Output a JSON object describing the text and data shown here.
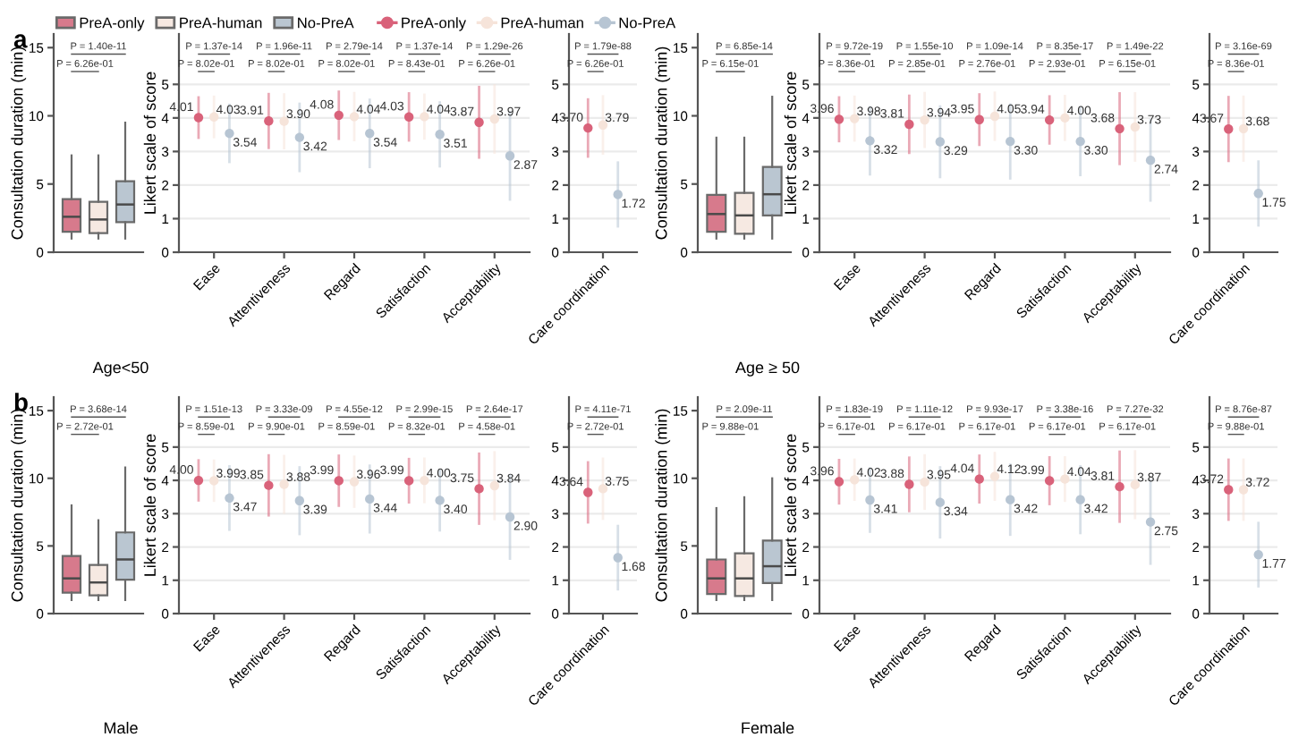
{
  "chart_data": [
    {
      "type": "box",
      "title": "a",
      "xlabel": "Age<50",
      "ylabel": "Consultation duration (min)",
      "categories": [
        null
      ],
      "ylim": [
        0,
        16
      ],
      "yticks": [
        0,
        5,
        10,
        15
      ],
      "legend": "top",
      "annotations": [
        "P = 1.40e-11",
        "P = 6.26e-01"
      ],
      "series": [
        {
          "name": "PreA-only",
          "color": "#d77a8c",
          "boxes": [
            {
              "low": 1,
              "q1": 1.5,
              "median": 2.6,
              "q3": 3.9,
              "high": 7.1
            }
          ]
        },
        {
          "name": "PreA-human",
          "color": "#f6e9e2",
          "boxes": [
            {
              "low": 1,
              "q1": 1.4,
              "median": 2.4,
              "q3": 3.7,
              "high": 7.1
            }
          ]
        },
        {
          "name": "No-PreA",
          "color": "#bac6d1",
          "boxes": [
            {
              "low": 1,
              "q1": 2.2,
              "median": 3.5,
              "q3": 5.2,
              "high": 9.5
            }
          ]
        }
      ]
    },
    {
      "type": "scatter",
      "ylabel": "Likert scale of score",
      "categories": [
        "Ease",
        "Attentiveness",
        "Regard",
        "Satisfaction",
        "Acceptability"
      ],
      "ylim": [
        0,
        6.5
      ],
      "yticks": [
        0,
        1,
        2,
        3,
        4,
        5
      ],
      "grid": "y",
      "marker": "circle",
      "legend": "top",
      "annotations": [
        "P = 1.37e-14",
        "P = 8.02e-01",
        "P = 1.96e-11",
        "P = 8.02e-01",
        "P = 2.79e-14",
        "P = 8.02e-01",
        "P = 1.37e-14",
        "P = 8.43e-01",
        "P = 1.29e-26",
        "P = 6.26e-01"
      ],
      "series": [
        {
          "name": "PreA-only",
          "color": "#d9627a",
          "values": [
            4.01,
            3.91,
            4.08,
            4.03,
            3.87
          ],
          "errors": [
            0.6,
            0.8,
            0.7,
            0.7,
            1.05
          ],
          "value_labels": [
            "4.01",
            "3.91",
            "4.08",
            "4.03",
            "3.87"
          ]
        },
        {
          "name": "PreA-human",
          "color": "#f6e4da",
          "values": [
            4.03,
            3.9,
            4.04,
            4.04,
            3.97
          ],
          "errors": [
            0.6,
            0.8,
            0.7,
            0.65,
            1.0
          ],
          "value_labels": [
            "4.03",
            "3.90",
            "4.04",
            "4.04",
            "3.97"
          ]
        },
        {
          "name": "No-PreA",
          "color": "#b7c5d3",
          "values": [
            3.54,
            3.42,
            3.54,
            3.51,
            2.87
          ],
          "errors": [
            0.85,
            1.0,
            1.0,
            0.95,
            1.3
          ],
          "value_labels": [
            "3.54",
            "3.42",
            "3.54",
            "3.51",
            "2.87"
          ]
        }
      ]
    },
    {
      "type": "scatter",
      "categories": [
        "Care coordination"
      ],
      "ylim": [
        0,
        6.5
      ],
      "yticks": [
        0,
        1,
        2,
        3,
        4,
        5
      ],
      "grid": "y",
      "marker": "circle",
      "annotations": [
        "P = 1.79e-88",
        "P = 6.26e-01"
      ],
      "series": [
        {
          "color": "#d9627a",
          "values": [
            3.7
          ],
          "errors": [
            0.85
          ],
          "value_labels": [
            "3.70"
          ]
        },
        {
          "color": "#f6e4da",
          "values": [
            3.79
          ],
          "errors": [
            0.85
          ],
          "value_labels": [
            "3.79"
          ]
        },
        {
          "color": "#b7c5d3",
          "values": [
            1.72
          ],
          "errors": [
            0.95
          ],
          "value_labels": [
            "1.72"
          ]
        }
      ]
    },
    {
      "type": "box",
      "xlabel": "Age ≥ 50",
      "ylabel": "Consultation duration (min)",
      "categories": [
        null
      ],
      "ylim": [
        0,
        16
      ],
      "yticks": [
        0,
        5,
        10,
        15
      ],
      "annotations": [
        "P = 6.85e-14",
        "P = 6.15e-01"
      ],
      "series": [
        {
          "color": "#d77a8c",
          "boxes": [
            {
              "low": 1,
              "q1": 1.5,
              "median": 2.8,
              "q3": 4.2,
              "high": 8.4
            }
          ]
        },
        {
          "color": "#f6e9e2",
          "boxes": [
            {
              "low": 1,
              "q1": 1.35,
              "median": 2.7,
              "q3": 4.35,
              "high": 8.4
            }
          ]
        },
        {
          "color": "#bac6d1",
          "boxes": [
            {
              "low": 1,
              "q1": 2.7,
              "median": 4.25,
              "q3": 6.25,
              "high": 11.4
            }
          ]
        }
      ]
    },
    {
      "type": "scatter",
      "ylabel": "Likert scale of score",
      "categories": [
        "Ease",
        "Attentiveness",
        "Regard",
        "Satisfaction",
        "Acceptability"
      ],
      "ylim": [
        0,
        6.5
      ],
      "yticks": [
        0,
        1,
        2,
        3,
        4,
        5
      ],
      "grid": "y",
      "marker": "circle",
      "annotations": [
        "P = 9.72e-19",
        "P = 8.36e-01",
        "P = 1.55e-10",
        "P = 2.85e-01",
        "P = 1.09e-14",
        "P = 2.76e-01",
        "P = 8.35e-17",
        "P = 2.93e-01",
        "P = 1.49e-22",
        "P = 6.15e-01"
      ],
      "series": [
        {
          "color": "#d9627a",
          "values": [
            3.96,
            3.81,
            3.95,
            3.94,
            3.68
          ],
          "errors": [
            0.65,
            0.85,
            0.75,
            0.7,
            1.05
          ],
          "value_labels": [
            "3.96",
            "3.81",
            "3.95",
            "3.94",
            "3.68"
          ]
        },
        {
          "color": "#f6e4da",
          "values": [
            3.98,
            3.94,
            4.05,
            4.0,
            3.73
          ],
          "errors": [
            0.65,
            0.8,
            0.7,
            0.65,
            1.0
          ],
          "value_labels": [
            "3.98",
            "3.94",
            "4.05",
            "4.00",
            "3.73"
          ]
        },
        {
          "color": "#b7c5d3",
          "values": [
            3.32,
            3.29,
            3.3,
            3.3,
            2.74
          ],
          "errors": [
            1.0,
            1.05,
            1.1,
            1.0,
            1.2
          ],
          "value_labels": [
            "3.32",
            "3.29",
            "3.30",
            "3.30",
            "2.74"
          ]
        }
      ]
    },
    {
      "type": "scatter",
      "categories": [
        "Care coordination"
      ],
      "ylim": [
        0,
        6.5
      ],
      "yticks": [
        0,
        1,
        2,
        3,
        4,
        5
      ],
      "grid": "y",
      "marker": "circle",
      "annotations": [
        "P = 3.16e-69",
        "P = 8.36e-01"
      ],
      "series": [
        {
          "color": "#d9627a",
          "values": [
            3.67
          ],
          "errors": [
            0.95
          ],
          "value_labels": [
            "3.67"
          ]
        },
        {
          "color": "#f6e4da",
          "values": [
            3.68
          ],
          "errors": [
            0.95
          ],
          "value_labels": [
            "3.68"
          ]
        },
        {
          "color": "#b7c5d3",
          "values": [
            1.75
          ],
          "errors": [
            0.95
          ],
          "value_labels": [
            "1.75"
          ]
        }
      ]
    },
    {
      "type": "box",
      "title": "b",
      "xlabel": "Male",
      "ylabel": "Consultation duration (min)",
      "categories": [
        null
      ],
      "ylim": [
        0,
        16
      ],
      "yticks": [
        0,
        5,
        10,
        15
      ],
      "annotations": [
        "P = 3.68e-14",
        "P = 2.72e-01"
      ],
      "series": [
        {
          "color": "#d77a8c",
          "boxes": [
            {
              "low": 1,
              "q1": 1.55,
              "median": 2.6,
              "q3": 4.25,
              "high": 8.0
            }
          ]
        },
        {
          "color": "#f6e9e2",
          "boxes": [
            {
              "low": 1,
              "q1": 1.35,
              "median": 2.3,
              "q3": 3.6,
              "high": 6.9
            }
          ]
        },
        {
          "color": "#bac6d1",
          "boxes": [
            {
              "low": 1,
              "q1": 2.5,
              "median": 4.0,
              "q3": 6.0,
              "high": 10.8
            }
          ]
        }
      ]
    },
    {
      "type": "scatter",
      "ylabel": "Likert scale of score",
      "categories": [
        "Ease",
        "Attentiveness",
        "Regard",
        "Satisfaction",
        "Acceptability"
      ],
      "ylim": [
        0,
        6.5
      ],
      "yticks": [
        0,
        1,
        2,
        3,
        4,
        5
      ],
      "grid": "y",
      "marker": "circle",
      "annotations": [
        "P = 1.51e-13",
        "P = 8.59e-01",
        "P = 3.33e-09",
        "P = 9.90e-01",
        "P = 4.55e-12",
        "P = 8.59e-01",
        "P = 2.99e-15",
        "P = 8.32e-01",
        "P = 2.64e-17",
        "P = 4.58e-01"
      ],
      "series": [
        {
          "color": "#d9627a",
          "values": [
            4.0,
            3.85,
            3.99,
            3.99,
            3.75
          ],
          "errors": [
            0.6,
            0.9,
            0.75,
            0.65,
            1.05
          ],
          "value_labels": [
            "4.00",
            "3.85",
            "3.99",
            "3.99",
            "3.75"
          ]
        },
        {
          "color": "#f6e4da",
          "values": [
            3.99,
            3.88,
            3.96,
            4.0,
            3.84
          ],
          "errors": [
            0.6,
            0.85,
            0.75,
            0.65,
            1.0
          ],
          "value_labels": [
            "3.99",
            "3.88",
            "3.96",
            "4.00",
            "3.84"
          ]
        },
        {
          "color": "#b7c5d3",
          "values": [
            3.47,
            3.39,
            3.44,
            3.4,
            2.9
          ],
          "errors": [
            0.95,
            1.0,
            1.0,
            0.9,
            1.25
          ],
          "value_labels": [
            "3.47",
            "3.39",
            "3.44",
            "3.40",
            "2.90"
          ]
        }
      ]
    },
    {
      "type": "scatter",
      "categories": [
        "Care coordination"
      ],
      "ylim": [
        0,
        6.5
      ],
      "yticks": [
        0,
        1,
        2,
        3,
        4,
        5
      ],
      "grid": "y",
      "marker": "circle",
      "annotations": [
        "P = 4.11e-71",
        "P = 2.72e-01"
      ],
      "series": [
        {
          "color": "#d9627a",
          "values": [
            3.64
          ],
          "errors": [
            0.9
          ],
          "value_labels": [
            "3.64"
          ]
        },
        {
          "color": "#f6e4da",
          "values": [
            3.75
          ],
          "errors": [
            0.9
          ],
          "value_labels": [
            "3.75"
          ]
        },
        {
          "color": "#b7c5d3",
          "values": [
            1.68
          ],
          "errors": [
            0.95
          ],
          "value_labels": [
            "1.68"
          ]
        }
      ]
    },
    {
      "type": "box",
      "xlabel": "Female",
      "ylabel": "Consultation duration (min)",
      "categories": [
        null
      ],
      "ylim": [
        0,
        16
      ],
      "yticks": [
        0,
        5,
        10,
        15
      ],
      "annotations": [
        "P = 2.09e-11",
        "P = 9.88e-01"
      ],
      "series": [
        {
          "color": "#d77a8c",
          "boxes": [
            {
              "low": 1,
              "q1": 1.45,
              "median": 2.6,
              "q3": 4.0,
              "high": 7.8
            }
          ]
        },
        {
          "color": "#f6e9e2",
          "boxes": [
            {
              "low": 1,
              "q1": 1.3,
              "median": 2.6,
              "q3": 4.45,
              "high": 8.6
            }
          ]
        },
        {
          "color": "#bac6d1",
          "boxes": [
            {
              "low": 1,
              "q1": 2.25,
              "median": 3.5,
              "q3": 5.4,
              "high": 10.0
            }
          ]
        }
      ]
    },
    {
      "type": "scatter",
      "ylabel": "Likert scale of score",
      "categories": [
        "Ease",
        "Attentiveness",
        "Regard",
        "Satisfaction",
        "Acceptability"
      ],
      "ylim": [
        0,
        6.5
      ],
      "yticks": [
        0,
        1,
        2,
        3,
        4,
        5
      ],
      "grid": "y",
      "marker": "circle",
      "annotations": [
        "P = 1.83e-19",
        "P = 6.17e-01",
        "P = 1.11e-12",
        "P = 6.17e-01",
        "P = 9.93e-17",
        "P = 6.17e-01",
        "P = 3.38e-16",
        "P = 6.17e-01",
        "P = 7.27e-32",
        "P = 6.17e-01"
      ],
      "series": [
        {
          "color": "#d9627a",
          "values": [
            3.96,
            3.88,
            4.04,
            3.99,
            3.81
          ],
          "errors": [
            0.65,
            0.8,
            0.7,
            0.7,
            1.05
          ],
          "value_labels": [
            "3.96",
            "3.88",
            "4.04",
            "3.99",
            "3.81"
          ]
        },
        {
          "color": "#f6e4da",
          "values": [
            4.02,
            3.95,
            4.12,
            4.04,
            3.87
          ],
          "errors": [
            0.6,
            0.8,
            0.7,
            0.65,
            1.0
          ],
          "value_labels": [
            "4.02",
            "3.95",
            "4.12",
            "4.04",
            "3.87"
          ]
        },
        {
          "color": "#b7c5d3",
          "values": [
            3.41,
            3.34,
            3.42,
            3.42,
            2.75
          ],
          "errors": [
            0.95,
            1.05,
            1.05,
            1.0,
            1.25
          ],
          "value_labels": [
            "3.41",
            "3.34",
            "3.42",
            "3.42",
            "2.75"
          ]
        }
      ]
    },
    {
      "type": "scatter",
      "categories": [
        "Care coordination"
      ],
      "ylim": [
        0,
        6.5
      ],
      "yticks": [
        0,
        1,
        2,
        3,
        4,
        5
      ],
      "grid": "y",
      "marker": "circle",
      "annotations": [
        "P = 8.76e-87",
        "P = 9.88e-01"
      ],
      "series": [
        {
          "color": "#d9627a",
          "values": [
            3.72
          ],
          "errors": [
            0.9
          ],
          "value_labels": [
            "3.72"
          ]
        },
        {
          "color": "#f6e4da",
          "values": [
            3.72
          ],
          "errors": [
            0.9
          ],
          "value_labels": [
            "3.72"
          ]
        },
        {
          "color": "#b7c5d3",
          "values": [
            1.77
          ],
          "errors": [
            0.95
          ],
          "value_labels": [
            "1.77"
          ]
        }
      ]
    }
  ]
}
